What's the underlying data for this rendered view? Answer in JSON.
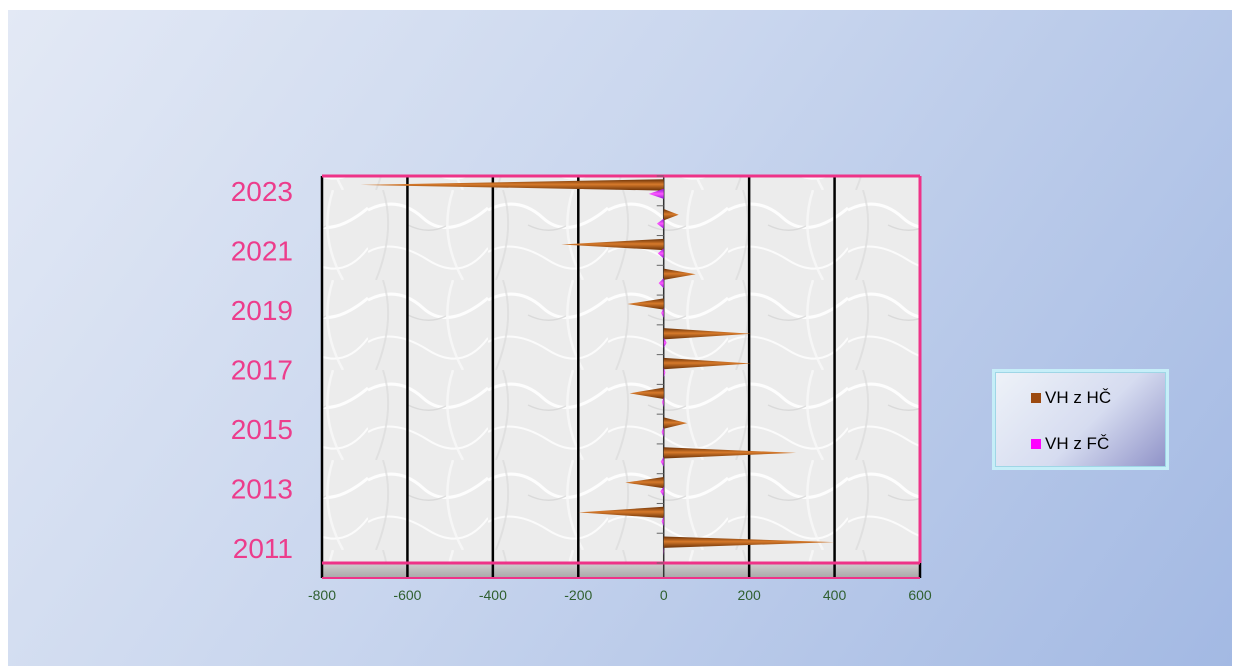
{
  "chart_data": {
    "type": "bar",
    "orientation": "horizontal",
    "categories": [
      "2011",
      "2012",
      "2013",
      "2014",
      "2015",
      "2016",
      "2017",
      "2018",
      "2019",
      "2020",
      "2021",
      "2022",
      "2023"
    ],
    "y_tick_labels": [
      "2011",
      "2013",
      "2015",
      "2017",
      "2019",
      "2021",
      "2023"
    ],
    "xlim": [
      -800,
      600
    ],
    "x_ticks": [
      -800,
      -600,
      -400,
      -200,
      0,
      200,
      400,
      600
    ],
    "x_tick_labels": [
      "-800",
      "-600",
      "-400",
      "-200",
      "0",
      "200",
      "400",
      "600"
    ],
    "grid": true,
    "legend_position": "right",
    "series": [
      {
        "name": "VH z HČ",
        "color": "#a0521a",
        "values": [
          400,
          -200,
          -90,
          310,
          55,
          -80,
          205,
          205,
          -85,
          75,
          -240,
          35,
          -710
        ]
      },
      {
        "name": "VH z FČ",
        "color": "#ff00ff",
        "values": [
          1,
          -5,
          -8,
          -7,
          -5,
          -4,
          4,
          7,
          -6,
          -12,
          -14,
          -16,
          -35
        ]
      }
    ],
    "title": "",
    "xlabel": "",
    "ylabel": ""
  },
  "colors": {
    "category_label": "#ec3d8c",
    "tick_label": "#2f5f2f",
    "frame": "#ee3388"
  }
}
